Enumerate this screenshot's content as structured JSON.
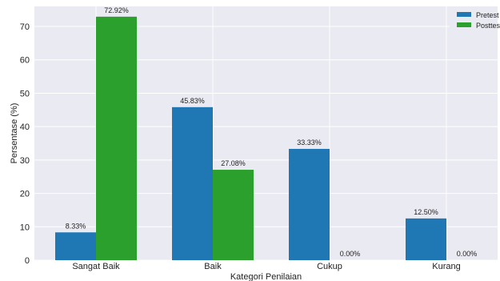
{
  "chart_data": {
    "type": "bar",
    "title": "",
    "xlabel": "Kategori Penilaian",
    "ylabel": "Persentase (%)",
    "ylim": [
      0,
      76
    ],
    "yticks": [
      0,
      10,
      20,
      30,
      40,
      50,
      60,
      70
    ],
    "grid": true,
    "legend_position": "top-right",
    "categories": [
      "Sangat Baik",
      "Baik",
      "Cukup",
      "Kurang"
    ],
    "series": [
      {
        "name": "Pretest",
        "color": "#1f77b4",
        "values": [
          8.33,
          45.83,
          33.33,
          12.5
        ],
        "labels": [
          "8.33%",
          "45.83%",
          "33.33%",
          "12.50%"
        ]
      },
      {
        "name": "Posttest",
        "color": "#2ca02c",
        "values": [
          72.92,
          27.08,
          0.0,
          0.0
        ],
        "labels": [
          "72.92%",
          "27.08%",
          "0.00%",
          "0.00%"
        ]
      }
    ],
    "background_color": "#eaeaf2",
    "grid_color": "#ffffff"
  }
}
